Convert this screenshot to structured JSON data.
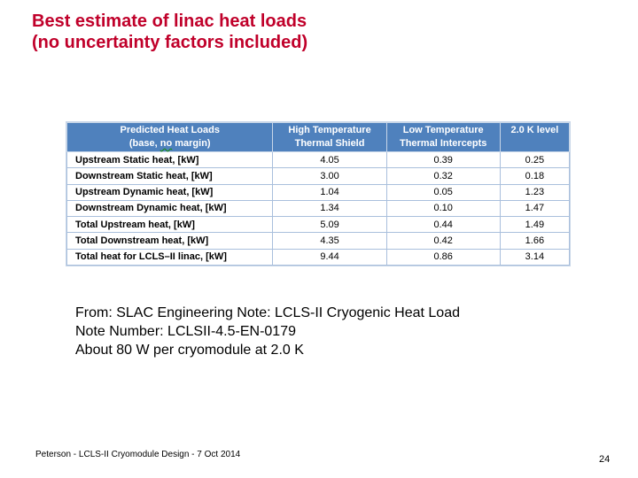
{
  "title": {
    "line1": "Best estimate of linac heat loads",
    "line2": "(no uncertainty factors included)"
  },
  "table": {
    "headers": [
      {
        "line1": "Predicted Heat Loads",
        "line2_prefix": "(base, ",
        "line2_squiggle": "no",
        "line2_suffix": " margin)"
      },
      {
        "line1": "High Temperature",
        "line2": "Thermal Shield"
      },
      {
        "line1": "Low Temperature",
        "line2": "Thermal Intercepts"
      },
      {
        "line1": "2.0 K level"
      }
    ],
    "rows": [
      {
        "label": "Upstream Static heat, [kW]",
        "high": "4.05",
        "low": "0.39",
        "k2": "0.25"
      },
      {
        "label": "Downstream Static heat, [kW]",
        "high": "3.00",
        "low": "0.32",
        "k2": "0.18"
      },
      {
        "label": "Upstream Dynamic heat, [kW]",
        "high": "1.04",
        "low": "0.05",
        "k2": "1.23"
      },
      {
        "label": "Downstream Dynamic heat, [kW]",
        "high": "1.34",
        "low": "0.10",
        "k2": "1.47"
      },
      {
        "label": "Total Upstream heat, [kW]",
        "high": "5.09",
        "low": "0.44",
        "k2": "1.49"
      },
      {
        "label": "Total Downstream heat, [kW]",
        "high": "4.35",
        "low": "0.42",
        "k2": "1.66"
      },
      {
        "label": "Total heat for LCLS–II linac,  [kW]",
        "high": "9.44",
        "low": "0.86",
        "k2": "3.14"
      }
    ]
  },
  "source": {
    "line1": "From:  SLAC Engineering Note:  LCLS-II Cryogenic Heat Load",
    "line2": "Note Number:  LCLSII-4.5-EN-0179",
    "line3": "About 80 W per cryomodule at 2.0 K"
  },
  "footer": {
    "text": "Peterson - LCLS-II Cryomodule Design - 7 Oct 2014",
    "page_number": "24"
  }
}
